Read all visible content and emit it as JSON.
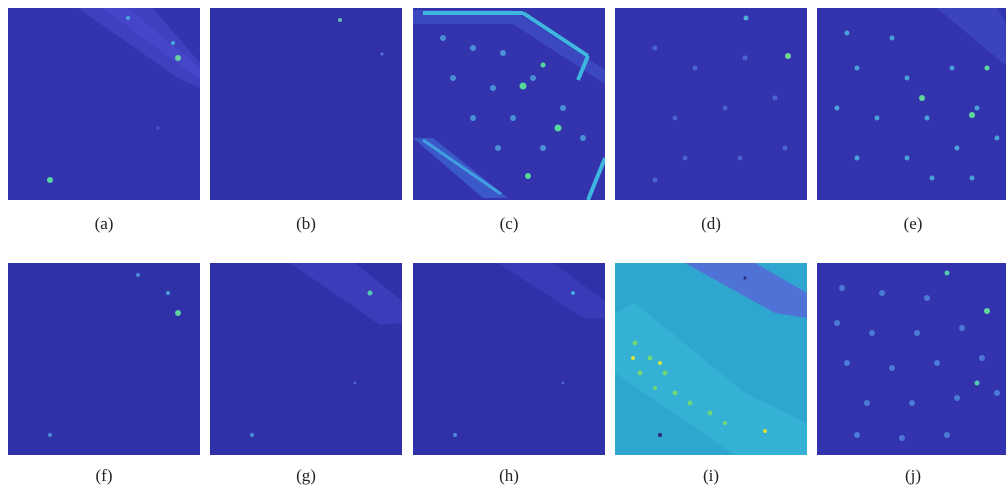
{
  "figure": {
    "panels": [
      {
        "label": "(a)",
        "variant": "a"
      },
      {
        "label": "(b)",
        "variant": "b"
      },
      {
        "label": "(c)",
        "variant": "c"
      },
      {
        "label": "(d)",
        "variant": "d"
      },
      {
        "label": "(e)",
        "variant": "e"
      },
      {
        "label": "(f)",
        "variant": "f"
      },
      {
        "label": "(g)",
        "variant": "g"
      },
      {
        "label": "(h)",
        "variant": "h"
      },
      {
        "label": "(i)",
        "variant": "i"
      },
      {
        "label": "(j)",
        "variant": "j"
      }
    ],
    "colors": {
      "background_dark": "#2e2ea6",
      "background_mid": "#3435b2",
      "highlight_cyan": "#29c0d9",
      "highlight_green": "#54e08a",
      "highlight_yellow": "#d6e23a",
      "teal_field": "#2fa6cf"
    }
  }
}
